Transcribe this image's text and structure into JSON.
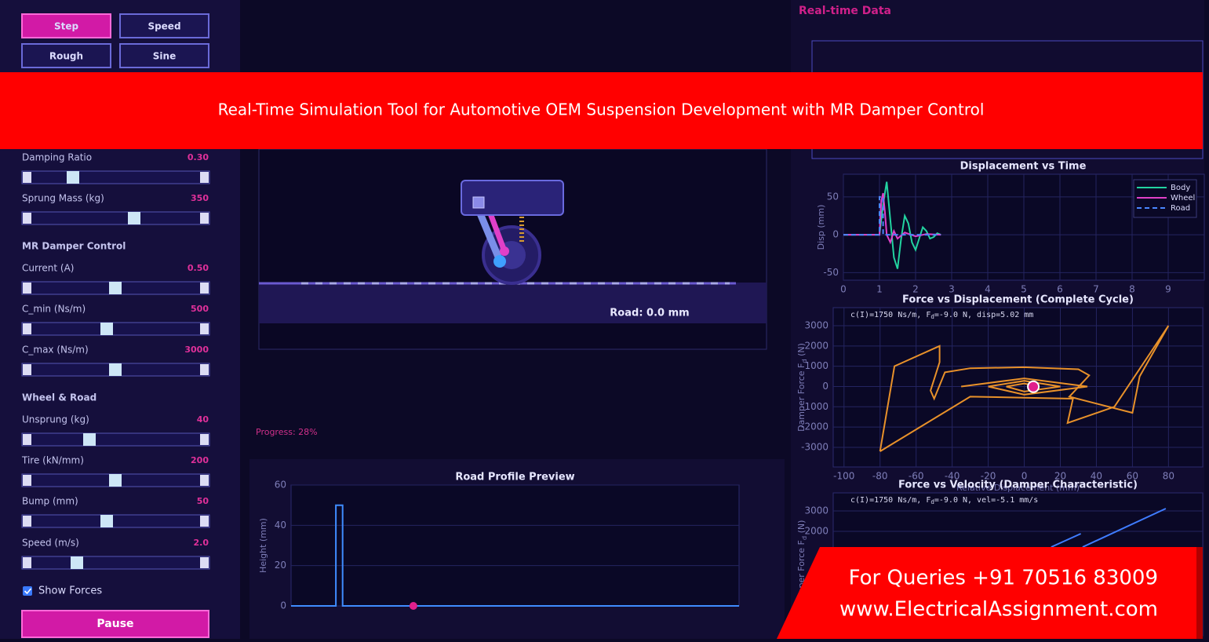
{
  "banner_title": "Real-Time Simulation Tool for Automotive OEM Suspension Development with MR Damper Control",
  "contact": {
    "phone": "For Queries +91 70516 83009",
    "website": "www.ElectricalAssignment.com"
  },
  "mode_buttons": [
    "Step",
    "Speed",
    "Rough",
    "Sine"
  ],
  "control_groups": [
    {
      "controls": [
        {
          "label": "Damping Ratio",
          "value": "0.30"
        },
        {
          "label": "Sprung Mass (kg)",
          "value": "350"
        }
      ]
    },
    {
      "heading": "MR Damper Control",
      "controls": [
        {
          "label": "Current (A)",
          "value": "0.50"
        },
        {
          "label": "C_min (Ns/m)",
          "value": "500"
        },
        {
          "label": "C_max (Ns/m)",
          "value": "3000"
        }
      ]
    },
    {
      "heading": "Wheel & Road",
      "controls": [
        {
          "label": "Unsprung (kg)",
          "value": "40"
        },
        {
          "label": "Tire (kN/mm)",
          "value": "200"
        },
        {
          "label": "Bump (mm)",
          "value": "50"
        },
        {
          "label": "Speed (m/s)",
          "value": "2.0"
        }
      ]
    }
  ],
  "show_forces": "Show Forces",
  "pause_button": "Pause",
  "road_readout": "Road: 0.0 mm",
  "progress": "Progress: 28%",
  "panel_title": "Real-time Data",
  "chart_data": [
    {
      "type": "line",
      "title": "Road Profile Preview",
      "ylabel": "Height (mm)",
      "xlim": [
        0,
        100
      ],
      "ylim": [
        0,
        60
      ],
      "yticks": [
        0,
        20,
        40,
        60
      ],
      "grid": true,
      "series": [
        {
          "color": "#3f8cff",
          "x": [
            0,
            10,
            10,
            11.5,
            11.5,
            100
          ],
          "values": [
            0,
            0,
            50,
            50,
            0,
            0
          ]
        }
      ],
      "current_point": {
        "x": 27.3,
        "y": 0,
        "color": "#e0208c"
      }
    },
    {
      "type": "line",
      "title": "Displacement vs Time",
      "ylabel": "Disp (mm)",
      "xlim": [
        0,
        10
      ],
      "ylim": [
        -60,
        80
      ],
      "xticks": [
        0,
        1,
        2,
        3,
        4,
        5,
        6,
        7,
        8,
        9
      ],
      "yticks": [
        -50,
        0,
        50
      ],
      "grid": true,
      "legend": "upper right",
      "series": [
        {
          "name": "Body",
          "color": "#22d3a0",
          "x": [
            0,
            1,
            1.1,
            1.2,
            1.3,
            1.4,
            1.5,
            1.6,
            1.7,
            1.8,
            1.9,
            2.0,
            2.1,
            2.2,
            2.3,
            2.4,
            2.5,
            2.6,
            2.7
          ],
          "values": [
            0,
            0,
            40,
            70,
            20,
            -30,
            -45,
            -5,
            25,
            15,
            -10,
            -20,
            -5,
            10,
            5,
            -5,
            -3,
            2,
            0
          ]
        },
        {
          "name": "Wheel",
          "color": "#e040c8",
          "x": [
            0,
            1,
            1.05,
            1.1,
            1.15,
            1.2,
            1.3,
            1.4,
            1.5,
            1.7,
            2.0,
            2.3,
            2.7
          ],
          "values": [
            0,
            0,
            45,
            55,
            30,
            0,
            -10,
            5,
            -5,
            3,
            -2,
            1,
            0
          ]
        },
        {
          "name": "Road",
          "color": "#4a86ff",
          "dash": true,
          "x": [
            0,
            1,
            1,
            1.1,
            1.1,
            2.7
          ],
          "values": [
            0,
            0,
            50,
            50,
            0,
            0
          ]
        }
      ]
    },
    {
      "type": "line",
      "title": "Force vs Displacement (Complete Cycle)",
      "xlabel": "Relative Displacement (mm)",
      "ylabel": {
        "text": "Damper Force F",
        "sub": "d",
        "after": " (N)"
      },
      "annotation": {
        "text": "c(I)=1750 Ns/m, F",
        "sub": "d",
        "after": "=-9.0 N, disp=5.02 mm"
      },
      "xlim": [
        -106,
        99
      ],
      "ylim": [
        -3970,
        3890
      ],
      "xticks": [
        -100,
        -80,
        -60,
        -40,
        -20,
        0,
        20,
        40,
        60,
        80
      ],
      "yticks": [
        -3000,
        -2000,
        -1000,
        0,
        1000,
        2000,
        3000
      ],
      "grid": true,
      "series": [
        {
          "color": "#e8912a",
          "x": [
            -80,
            -72,
            -47,
            -47,
            -52,
            -50,
            -44,
            -30,
            0,
            30,
            36,
            25,
            60,
            64,
            80,
            50,
            24,
            27,
            0,
            -30,
            -80
          ],
          "values": [
            -3200,
            1000,
            2000,
            1200,
            -200,
            -600,
            700,
            900,
            950,
            850,
            550,
            -500,
            -1300,
            500,
            3000,
            -1000,
            -1800,
            -600,
            -550,
            -500,
            -3200
          ]
        },
        {
          "color": "#e8912a",
          "x": [
            -35,
            0,
            35,
            0,
            -20,
            0,
            20,
            0,
            -10,
            0,
            8
          ],
          "values": [
            0,
            400,
            0,
            -400,
            0,
            280,
            0,
            -250,
            0,
            150,
            0
          ]
        }
      ],
      "current_point": {
        "x": 5.02,
        "y": -9,
        "color": "#e0208c"
      }
    },
    {
      "type": "line",
      "title": "Force vs Velocity (Damper Characteristic)",
      "ylabel": {
        "text": "Damper Force F",
        "sub": "d",
        "after": " (N)"
      },
      "annotation": {
        "text": "c(I)=1750 Ns/m, F",
        "sub": "d",
        "after": "=-9.0 N, vel=-5.1 mm/s"
      },
      "xlim": [
        -100,
        100
      ],
      "ylim": [
        -3115,
        3885
      ],
      "yticks": [
        2000,
        3000
      ],
      "grid": true,
      "series": [
        {
          "color": "#3f7cff",
          "x": [
            18,
            34,
            35,
            35,
            80
          ],
          "values": [
            1230,
            1885,
            null,
            1230,
            3115
          ]
        }
      ]
    }
  ]
}
